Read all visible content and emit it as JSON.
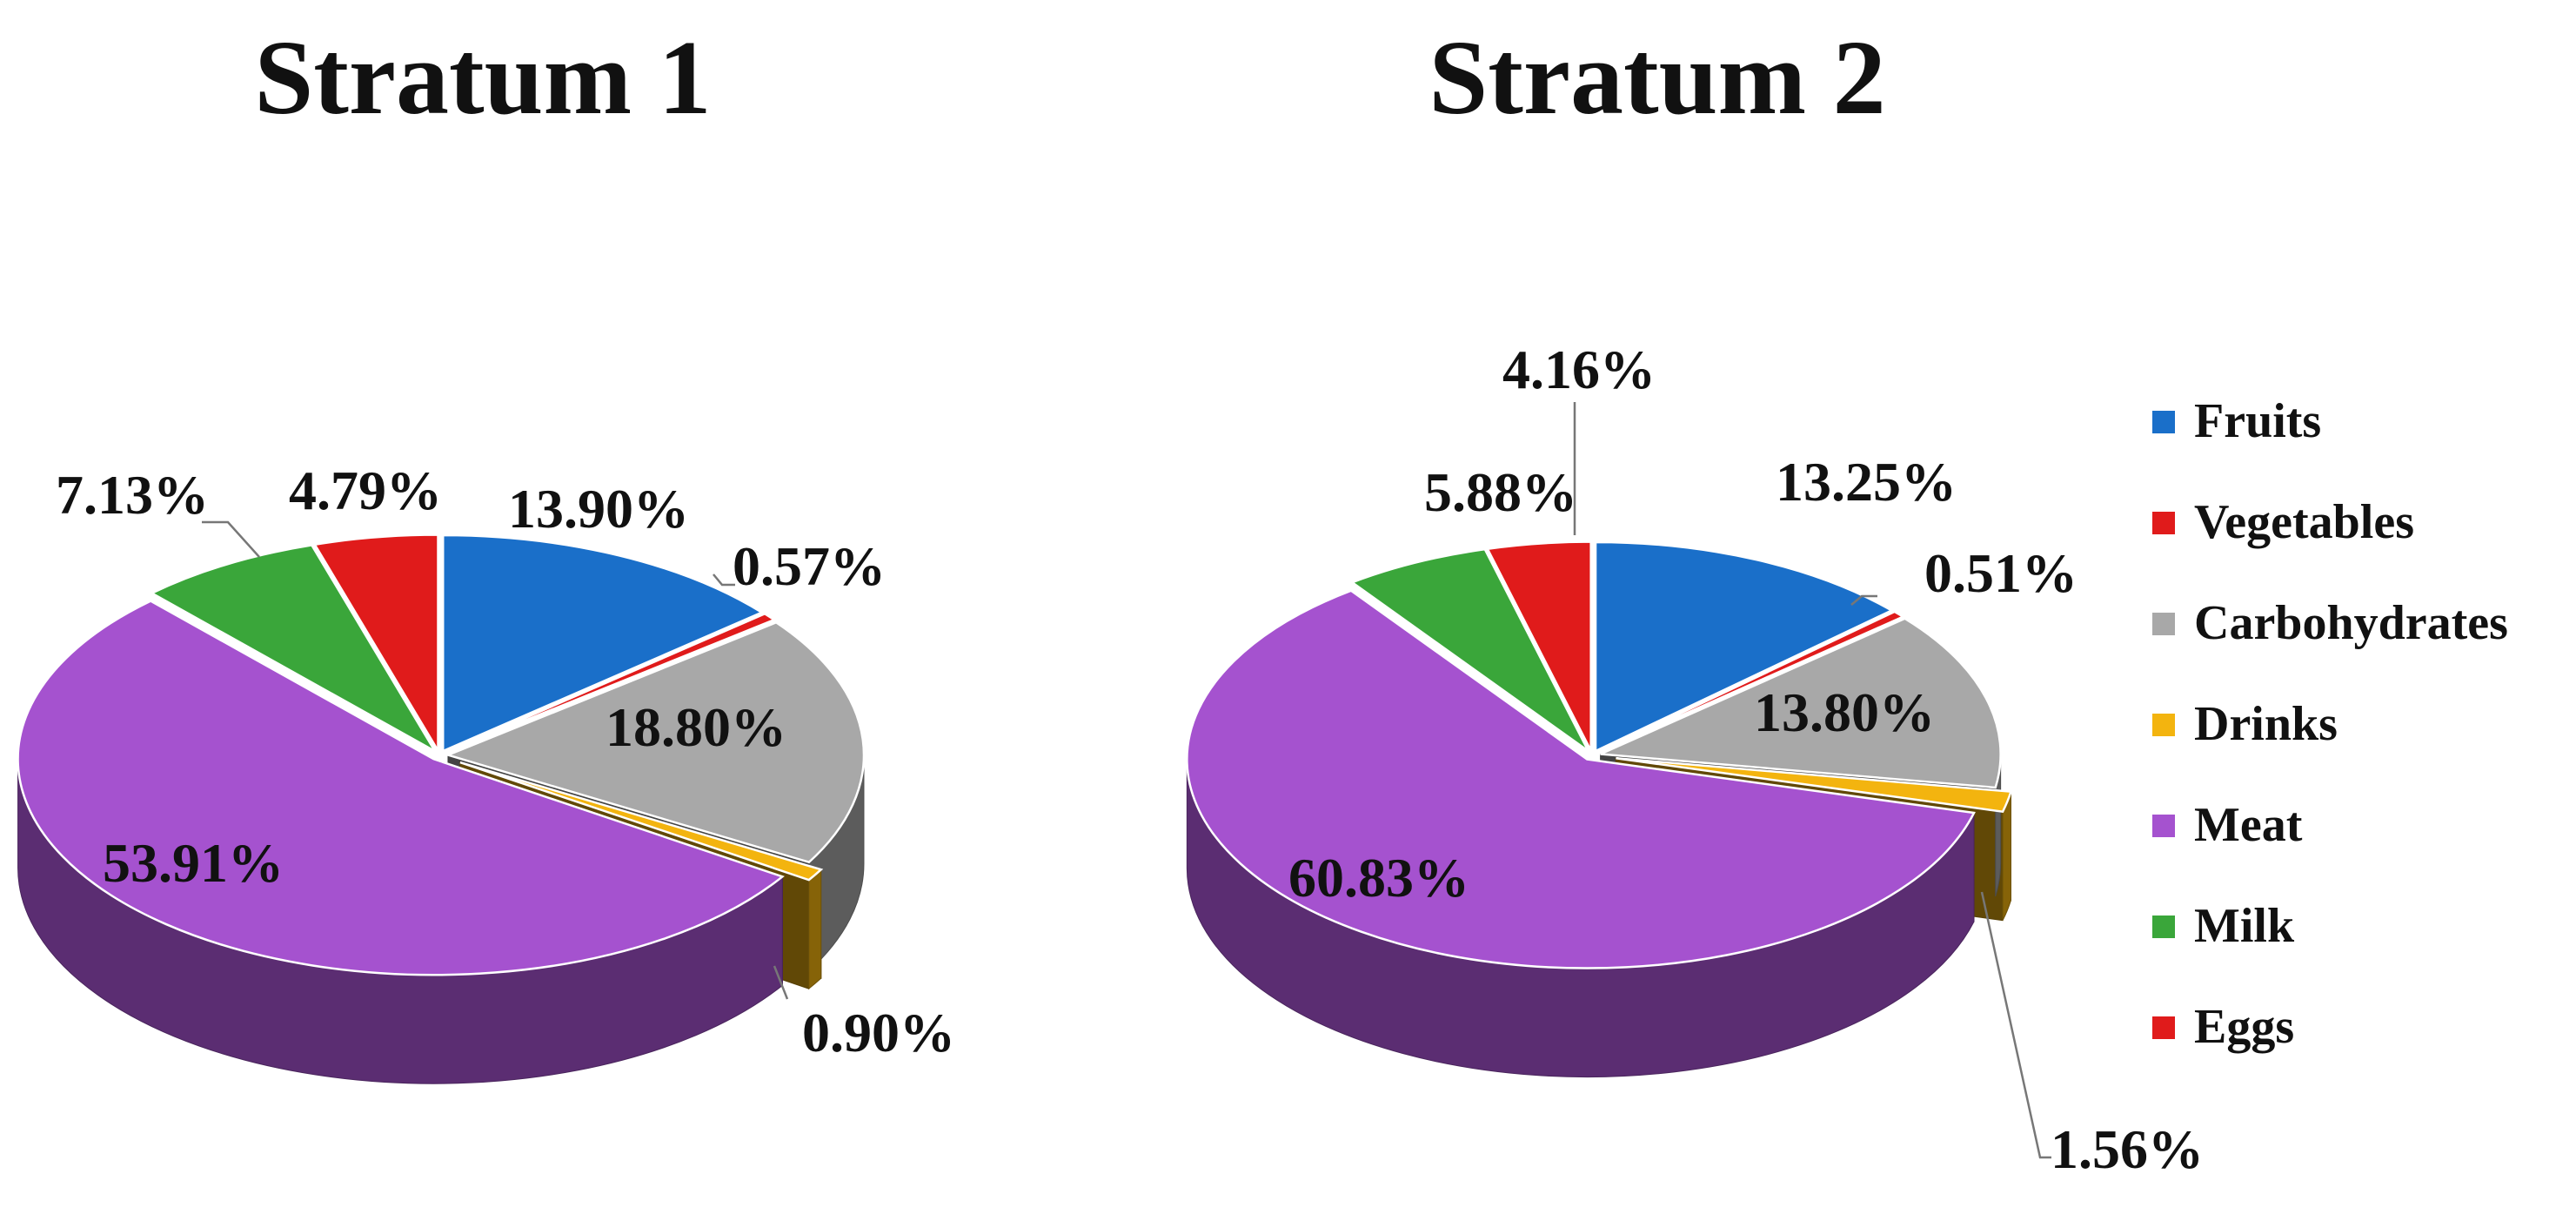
{
  "chart_data": [
    {
      "type": "pie",
      "title": "Stratum 1",
      "categories": [
        "Fruits",
        "Vegetables",
        "Carbohydrates",
        "Drinks",
        "Meat",
        "Milk",
        "Eggs"
      ],
      "values": [
        13.9,
        0.57,
        18.8,
        0.9,
        53.91,
        7.13,
        4.79
      ],
      "labels": [
        "13.90%",
        "0.57%",
        "18.80%",
        "0.90%",
        "53.91%",
        "7.13%",
        "4.79%"
      ]
    },
    {
      "type": "pie",
      "title": "Stratum 2",
      "categories": [
        "Fruits",
        "Vegetables",
        "Carbohydrates",
        "Drinks",
        "Meat",
        "Milk",
        "Eggs"
      ],
      "values": [
        13.25,
        0.51,
        13.8,
        1.56,
        60.83,
        5.88,
        4.16
      ],
      "labels": [
        "13.25%",
        "0.51%",
        "13.80%",
        "1.56%",
        "60.83%",
        "5.88%",
        "4.16%"
      ]
    }
  ],
  "legend": {
    "position": "right",
    "items": [
      {
        "label": "Fruits",
        "color": "#1a6fc9"
      },
      {
        "label": "Vegetables",
        "color": "#e01b1b"
      },
      {
        "label": "Carbohydrates",
        "color": "#a8a8a8"
      },
      {
        "label": "Drinks",
        "color": "#f3b40f"
      },
      {
        "label": "Meat",
        "color": "#a552cf"
      },
      {
        "label": "Milk",
        "color": "#3aa63a"
      },
      {
        "label": "Eggs",
        "color": "#e01b1b"
      }
    ]
  },
  "style": {
    "three_d": true,
    "exploded_slices": [
      "Drinks"
    ]
  }
}
